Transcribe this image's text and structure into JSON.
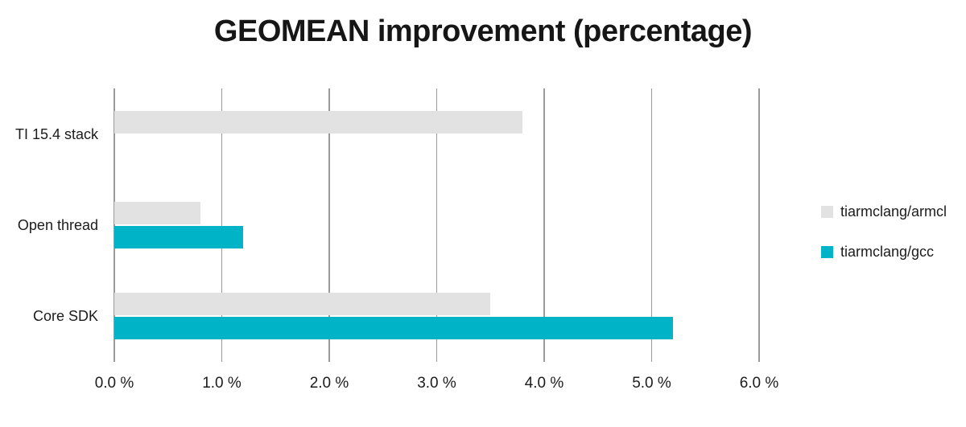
{
  "chart_data": {
    "type": "bar",
    "orientation": "horizontal",
    "title": "GEOMEAN improvement (percentage)",
    "categories": [
      "TI 15.4 stack",
      "Open thread",
      "Core SDK"
    ],
    "series": [
      {
        "name": "tiarmclang/armcl",
        "color": "#e2e2e2",
        "values": [
          3.8,
          0.8,
          3.5
        ]
      },
      {
        "name": "tiarmclang/gcc",
        "color": "#00b3c7",
        "values": [
          null,
          1.2,
          5.2
        ]
      }
    ],
    "x_ticks": [
      {
        "value": 0,
        "label": "0.0 %"
      },
      {
        "value": 1,
        "label": "1.0 %"
      },
      {
        "value": 2,
        "label": "2.0 %"
      },
      {
        "value": 3,
        "label": "3.0 %"
      },
      {
        "value": 4,
        "label": "4.0 %"
      },
      {
        "value": 5,
        "label": "5.0 %"
      },
      {
        "value": 6,
        "label": "6.0 %"
      }
    ],
    "xlim": [
      0,
      6
    ],
    "grid": "vertical",
    "legend_position": "right",
    "colors": {
      "background": "#ffffff",
      "gridline": "#9a9a9a",
      "text": "#1c1c1c"
    }
  }
}
